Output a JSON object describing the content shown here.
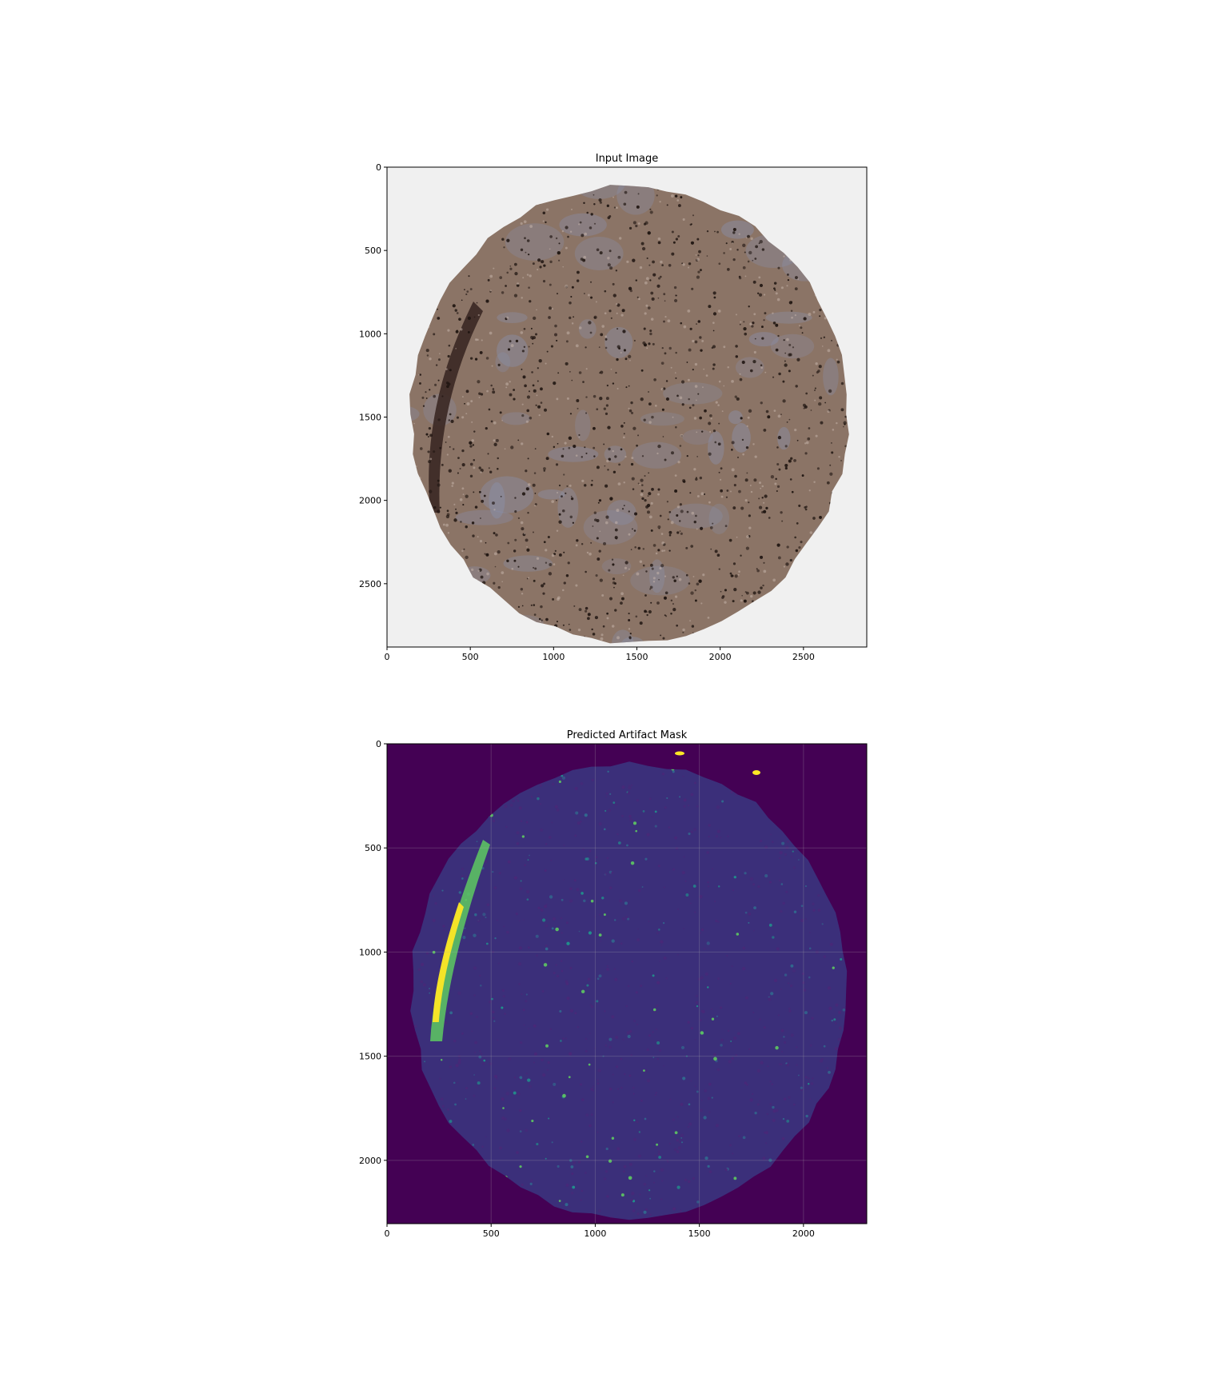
{
  "chart_data": [
    {
      "type": "heatmap",
      "title": "Input Image",
      "xlabel": "",
      "ylabel": "",
      "xlim": [
        0,
        2880
      ],
      "ylim": [
        2880,
        0
      ],
      "xticks": [
        0,
        500,
        1000,
        1500,
        2000,
        2500
      ],
      "yticks": [
        0,
        500,
        1000,
        1500,
        2000,
        2500
      ],
      "grid": false,
      "content": "H&E/IHC tissue microarray core, brown-stained with blue-gray stroma, on light gray background",
      "colors": {
        "background": "#f0f0f0",
        "tissue": "#8b7466",
        "stroma": "#8a8fa8",
        "dark_edge": "#3a2824",
        "nuclei": "#1e1410"
      }
    },
    {
      "type": "heatmap",
      "title": "Predicted Artifact Mask",
      "xlabel": "",
      "ylabel": "",
      "xlim": [
        0,
        2304
      ],
      "ylim": [
        2304,
        0
      ],
      "xticks": [
        0,
        500,
        1000,
        1500,
        2000
      ],
      "yticks": [
        0,
        500,
        1000,
        1500,
        2000
      ],
      "grid": true,
      "colormap": "viridis",
      "colors": {
        "background": "#440154",
        "tissue": "#3b2f7a",
        "low": "#31688e",
        "mid": "#21918c",
        "high": "#fde725",
        "edge": "#5ec962"
      }
    }
  ]
}
